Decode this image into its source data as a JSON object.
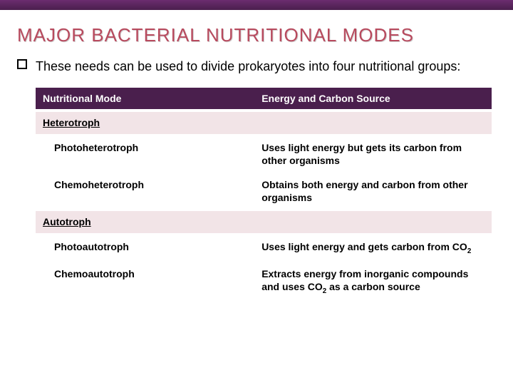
{
  "title": "MAJOR BACTERIAL NUTRITIONAL MODES",
  "intro": "These needs can be used to divide prokaryotes into four nutritional groups:",
  "table": {
    "header": {
      "left": "Nutritional Mode",
      "right": "Energy and Carbon Source"
    },
    "rows": [
      {
        "type": "category",
        "left": "Heterotroph",
        "right": ""
      },
      {
        "type": "sub",
        "left": "Photoheterotroph",
        "right": "Uses light energy but gets its carbon from other organisms"
      },
      {
        "type": "sub",
        "left": "Chemoheterotroph",
        "right": "Obtains both energy and carbon from other organisms"
      },
      {
        "type": "category",
        "left": "Autotroph",
        "right": ""
      },
      {
        "type": "sub",
        "left": "Photoautotroph",
        "right_html": "Uses light energy and gets carbon from CO<sub>2</sub>"
      },
      {
        "type": "sub",
        "left": "Chemoautotroph",
        "right_html": "Extracts energy from inorganic compounds and uses CO<sub>2</sub> as a carbon source"
      }
    ]
  },
  "colors": {
    "top_bar": "#4a1f4d",
    "title": "#b84a5e",
    "header_bg": "#4a1f4d",
    "category_bg": "#f2e4e7",
    "row_bg": "#ffffff"
  }
}
